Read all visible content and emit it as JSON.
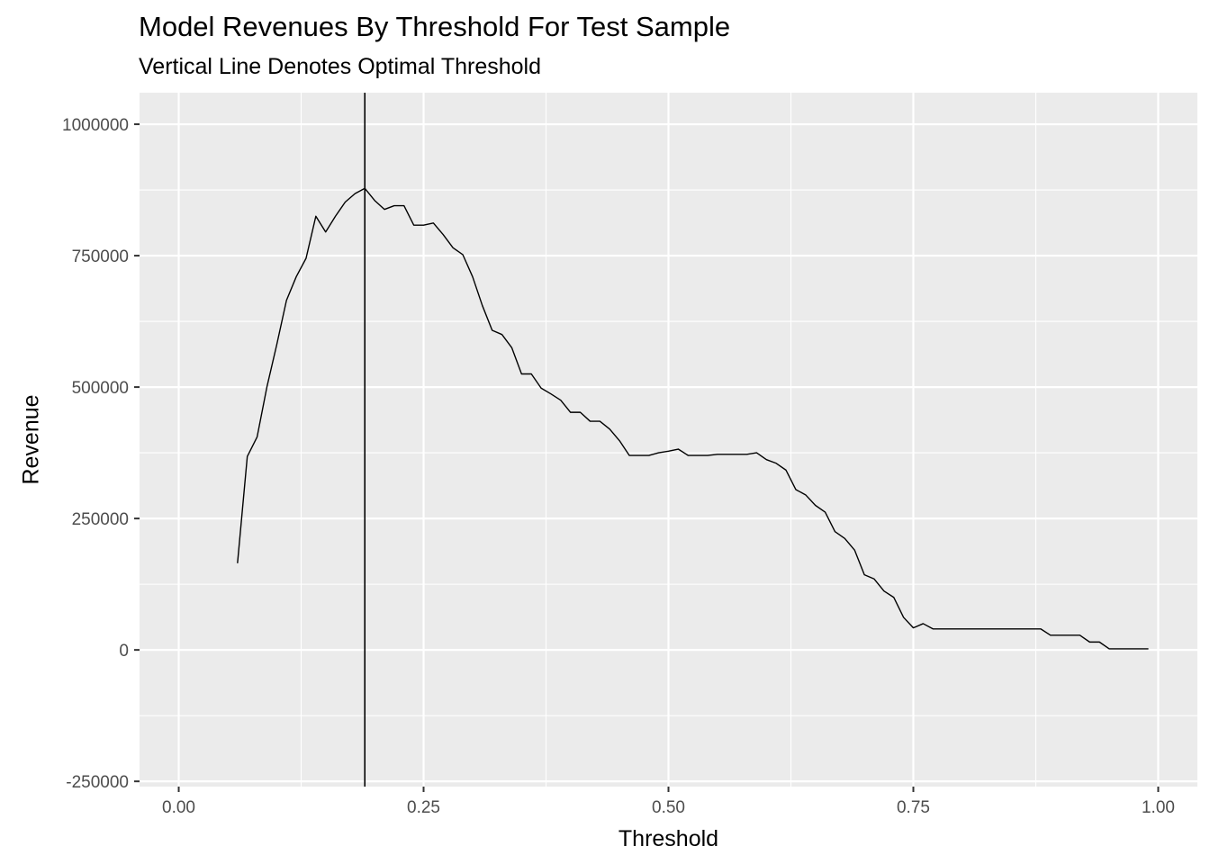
{
  "chart_data": {
    "type": "line",
    "title": "Model Revenues By Threshold For Test Sample",
    "subtitle": "Vertical Line Denotes Optimal Threshold",
    "xlabel": "Threshold",
    "ylabel": "Revenue",
    "xlim": [
      -0.04,
      1.04
    ],
    "ylim": [
      -260000,
      1060000
    ],
    "x_ticks": [
      0.0,
      0.25,
      0.5,
      0.75,
      1.0
    ],
    "x_tick_labels": [
      "0.00",
      "0.25",
      "0.50",
      "0.75",
      "1.00"
    ],
    "y_ticks": [
      -250000,
      0,
      250000,
      500000,
      750000,
      1000000
    ],
    "y_tick_labels": [
      "-250000",
      "0",
      "250000",
      "500000",
      "750000",
      "1000000"
    ],
    "grid": true,
    "background": "#ebebeb",
    "grid_color": "#ffffff",
    "line_color": "#000000",
    "optimal_threshold": 0.19,
    "series": [
      {
        "x": [
          0.06,
          0.07,
          0.08,
          0.09,
          0.1,
          0.11,
          0.12,
          0.13,
          0.14,
          0.15,
          0.16,
          0.17,
          0.18,
          0.19,
          0.2,
          0.21,
          0.22,
          0.23,
          0.24,
          0.25,
          0.26,
          0.27,
          0.28,
          0.29,
          0.3,
          0.31,
          0.32,
          0.33,
          0.34,
          0.35,
          0.36,
          0.37,
          0.38,
          0.39,
          0.4,
          0.41,
          0.42,
          0.43,
          0.44,
          0.45,
          0.46,
          0.47,
          0.48,
          0.49,
          0.5,
          0.51,
          0.52,
          0.53,
          0.54,
          0.55,
          0.56,
          0.57,
          0.58,
          0.59,
          0.6,
          0.61,
          0.62,
          0.63,
          0.64,
          0.65,
          0.66,
          0.67,
          0.68,
          0.69,
          0.7,
          0.71,
          0.72,
          0.73,
          0.74,
          0.75,
          0.76,
          0.77,
          0.78,
          0.79,
          0.8,
          0.81,
          0.82,
          0.83,
          0.84,
          0.85,
          0.86,
          0.87,
          0.88,
          0.89,
          0.9,
          0.91,
          0.92,
          0.93,
          0.94,
          0.95,
          0.96,
          0.97,
          0.98,
          0.99
        ],
        "values": [
          165000,
          368000,
          405000,
          500000,
          580000,
          665000,
          710000,
          745000,
          825000,
          795000,
          825000,
          852000,
          868000,
          878000,
          855000,
          838000,
          845000,
          845000,
          808000,
          808000,
          812000,
          790000,
          765000,
          752000,
          710000,
          655000,
          608000,
          600000,
          575000,
          525000,
          525000,
          498000,
          487000,
          475000,
          452000,
          452000,
          435000,
          435000,
          420000,
          398000,
          370000,
          370000,
          370000,
          375000,
          378000,
          382000,
          370000,
          370000,
          370000,
          372000,
          372000,
          372000,
          372000,
          375000,
          362000,
          355000,
          342000,
          305000,
          295000,
          275000,
          262000,
          225000,
          212000,
          190000,
          143000,
          135000,
          112000,
          100000,
          62000,
          42000,
          50000,
          40000,
          40000,
          40000,
          40000,
          40000,
          40000,
          40000,
          40000,
          40000,
          40000,
          40000,
          40000,
          28000,
          28000,
          28000,
          28000,
          15000,
          15000,
          2000,
          2000,
          2000,
          2000,
          2000
        ]
      }
    ]
  }
}
